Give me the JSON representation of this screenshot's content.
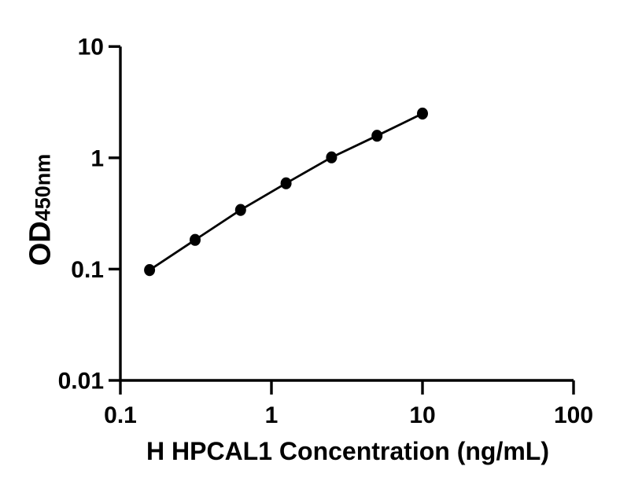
{
  "figure": {
    "background": "#ffffff"
  },
  "chart_data": {
    "type": "line",
    "title": "",
    "xlabel": "H HPCAL1 Concentration (ng/mL)",
    "ylabel": "OD450nm",
    "ylabel_parts": {
      "main": "OD",
      "sub": "450nm"
    },
    "x_scale": "log",
    "y_scale": "log",
    "xlim": [
      0.1,
      100
    ],
    "ylim": [
      0.01,
      10
    ],
    "x_tick_values": [
      0.1,
      1,
      10,
      100
    ],
    "x_tick_labels": [
      "0.1",
      "1",
      "10",
      "100"
    ],
    "y_tick_values": [
      10,
      1,
      0.1,
      0.01
    ],
    "y_tick_labels": [
      "10",
      "1",
      "0.1",
      "0.01"
    ],
    "grid": false,
    "legend": false,
    "series": [
      {
        "marker": "filled-circle",
        "color": "#000000",
        "x": [
          0.156,
          0.3125,
          0.625,
          1.25,
          2.5,
          5,
          10
        ],
        "y": [
          0.098,
          0.183,
          0.34,
          0.59,
          1.01,
          1.58,
          2.5
        ]
      }
    ],
    "colors": {
      "axis": "#000000",
      "text": "#000000",
      "background": "#ffffff"
    }
  }
}
